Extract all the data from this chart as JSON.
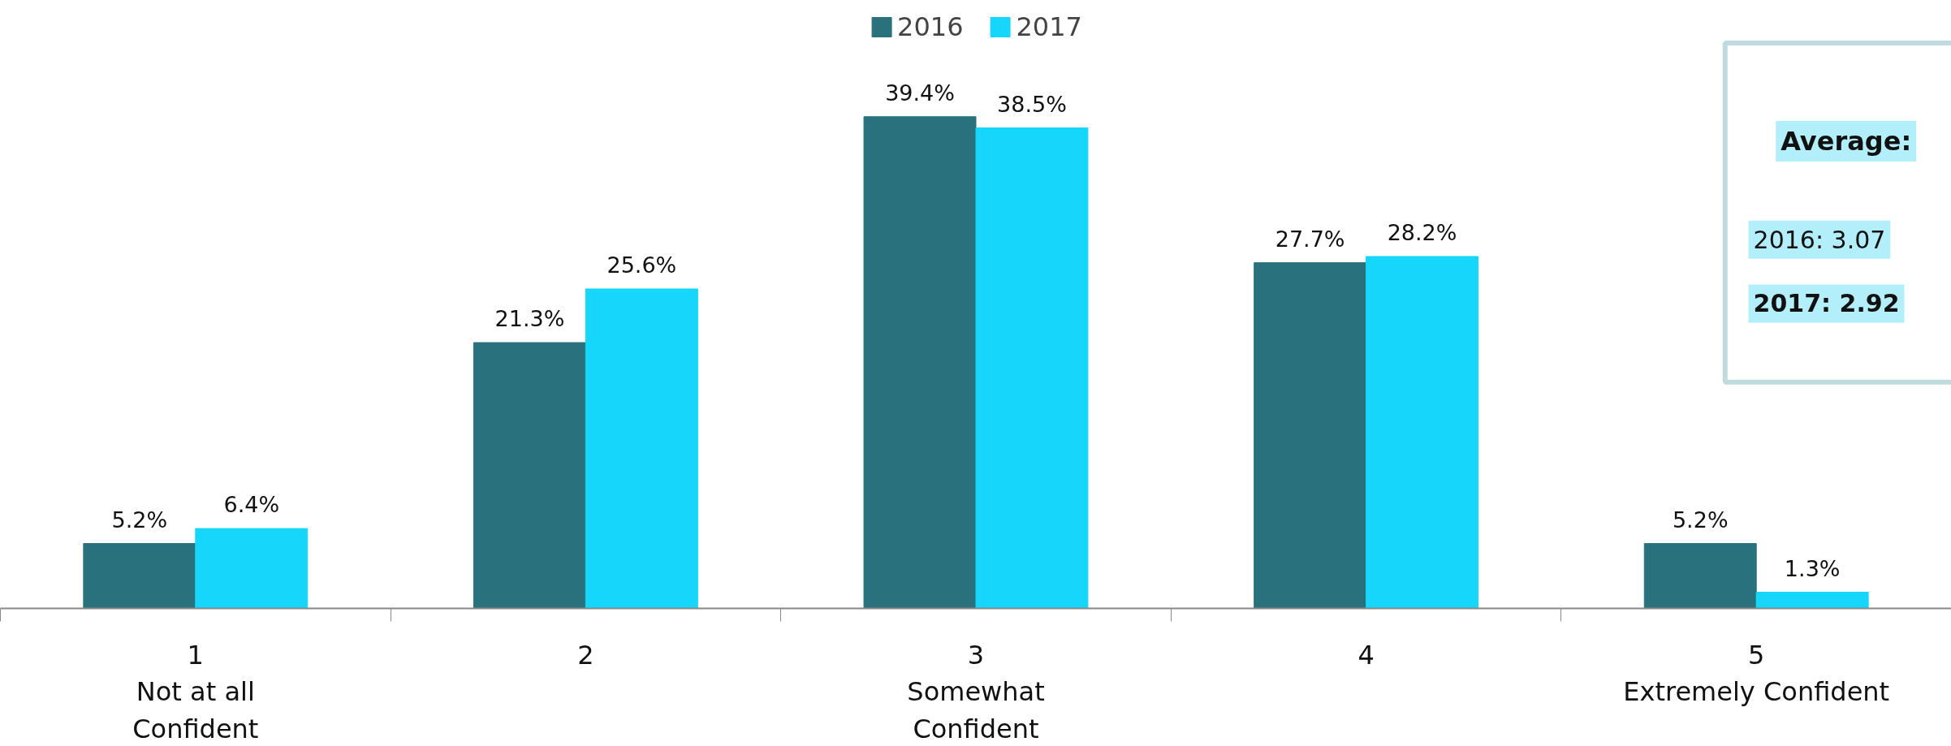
{
  "chart_data": {
    "type": "bar",
    "categories": [
      "1\nNot at all\nConfident",
      "2",
      "3\nSomewhat\nConfident",
      "4",
      "5\nExtremely Confident"
    ],
    "series": [
      {
        "name": "2016",
        "color": "#2a717e",
        "values": [
          5.2,
          21.3,
          39.4,
          27.7,
          5.2
        ],
        "value_labels": [
          "5.2%",
          "21.3%",
          "39.4%",
          "27.7%",
          "5.2%"
        ]
      },
      {
        "name": "2017",
        "color": "#16d7fb",
        "values": [
          6.4,
          25.6,
          38.5,
          28.2,
          1.3
        ],
        "value_labels": [
          "6.4%",
          "25.6%",
          "38.5%",
          "28.2%",
          "1.3%"
        ]
      }
    ],
    "legend": "top",
    "grid": false,
    "annotations": [
      "Average:",
      "2016: 3.07",
      "2017: 2.92"
    ]
  }
}
